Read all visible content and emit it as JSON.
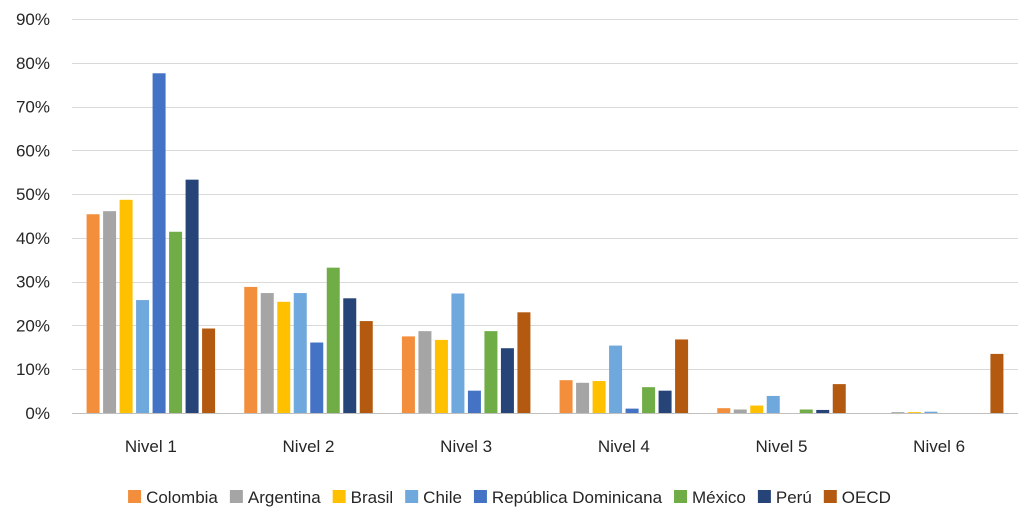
{
  "chart_data": {
    "type": "bar",
    "title": "",
    "xlabel": "",
    "ylabel": "",
    "categories": [
      "Nivel 1",
      "Nivel 2",
      "Nivel 3",
      "Nivel 4",
      "Nivel 5",
      "Nivel 6"
    ],
    "ylim": [
      0,
      90
    ],
    "yticks": [
      0,
      10,
      20,
      30,
      40,
      50,
      60,
      70,
      80,
      90
    ],
    "ytick_labels": [
      "0%",
      "10%",
      "20%",
      "30%",
      "40%",
      "50%",
      "60%",
      "70%",
      "80%",
      "90%"
    ],
    "grid": true,
    "legend_position": "bottom",
    "series": [
      {
        "name": "Colombia",
        "color": "#F28E3C",
        "values": [
          45.4,
          28.8,
          17.5,
          7.5,
          1.1,
          0.0
        ]
      },
      {
        "name": "Argentina",
        "color": "#A5A5A5",
        "values": [
          46.1,
          27.4,
          18.7,
          6.9,
          0.8,
          0.2
        ]
      },
      {
        "name": "Brasil",
        "color": "#FFC000",
        "values": [
          48.7,
          25.4,
          16.7,
          7.3,
          1.7,
          0.2
        ]
      },
      {
        "name": "Chile",
        "color": "#6FA8DC",
        "values": [
          25.8,
          27.4,
          27.3,
          15.4,
          3.9,
          0.3
        ]
      },
      {
        "name": "República Dominicana",
        "color": "#4472C4",
        "values": [
          77.6,
          16.1,
          5.1,
          1.0,
          0.0,
          0.0
        ]
      },
      {
        "name": "México",
        "color": "#70AD47",
        "values": [
          41.4,
          33.2,
          18.7,
          5.9,
          0.8,
          0.0
        ]
      },
      {
        "name": "Perú",
        "color": "#264478",
        "values": [
          53.3,
          26.2,
          14.8,
          5.1,
          0.7,
          0.0
        ]
      },
      {
        "name": "OECD",
        "color": "#B35A10",
        "values": [
          19.3,
          21.0,
          23.0,
          16.8,
          6.6,
          13.5
        ]
      }
    ]
  }
}
